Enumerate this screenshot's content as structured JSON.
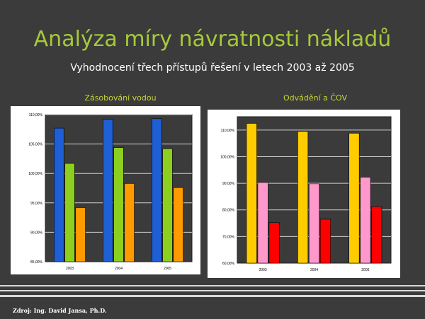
{
  "slide": {
    "title": "Analýza míry návratnosti nákladů",
    "subtitle": "Vyhodnocení třech přístupů řešení v letech 2003 až 2005",
    "source": "Zdroj: Ing. David Jansa, Ph.D."
  },
  "chart_data": [
    {
      "type": "bar",
      "title": "Zásobování vodou",
      "categories": [
        "2003",
        "2004",
        "2005"
      ],
      "series": [
        {
          "values": [
            107.7,
            109.2,
            109.3
          ],
          "color": "#1f5fd6"
        },
        {
          "values": [
            101.7,
            104.4,
            104.2
          ],
          "color": "#8ccf1e"
        },
        {
          "values": [
            94.2,
            98.3,
            97.6
          ],
          "color": "#ff9a00"
        }
      ],
      "ylim": [
        85,
        110
      ],
      "yticks": [
        "85,00%",
        "90,00%",
        "95,00%",
        "100,00%",
        "105,00%",
        "110,00%"
      ],
      "grid": true
    },
    {
      "type": "bar",
      "title": "Odvádění a ČOV",
      "categories": [
        "2003",
        "2004",
        "2005"
      ],
      "series": [
        {
          "values": [
            112.5,
            109.5,
            108.8
          ],
          "color": "#ffcc00"
        },
        {
          "values": [
            90.3,
            89.8,
            92.3
          ],
          "color": "#ff99cc"
        },
        {
          "values": [
            75.2,
            76.5,
            81.2
          ],
          "color": "#ff0000"
        }
      ],
      "ylim": [
        60,
        115
      ],
      "yticks": [
        "60,00%",
        "70,00%",
        "80,00%",
        "90,00%",
        "100,00%",
        "110,00%"
      ],
      "grid": true
    }
  ]
}
